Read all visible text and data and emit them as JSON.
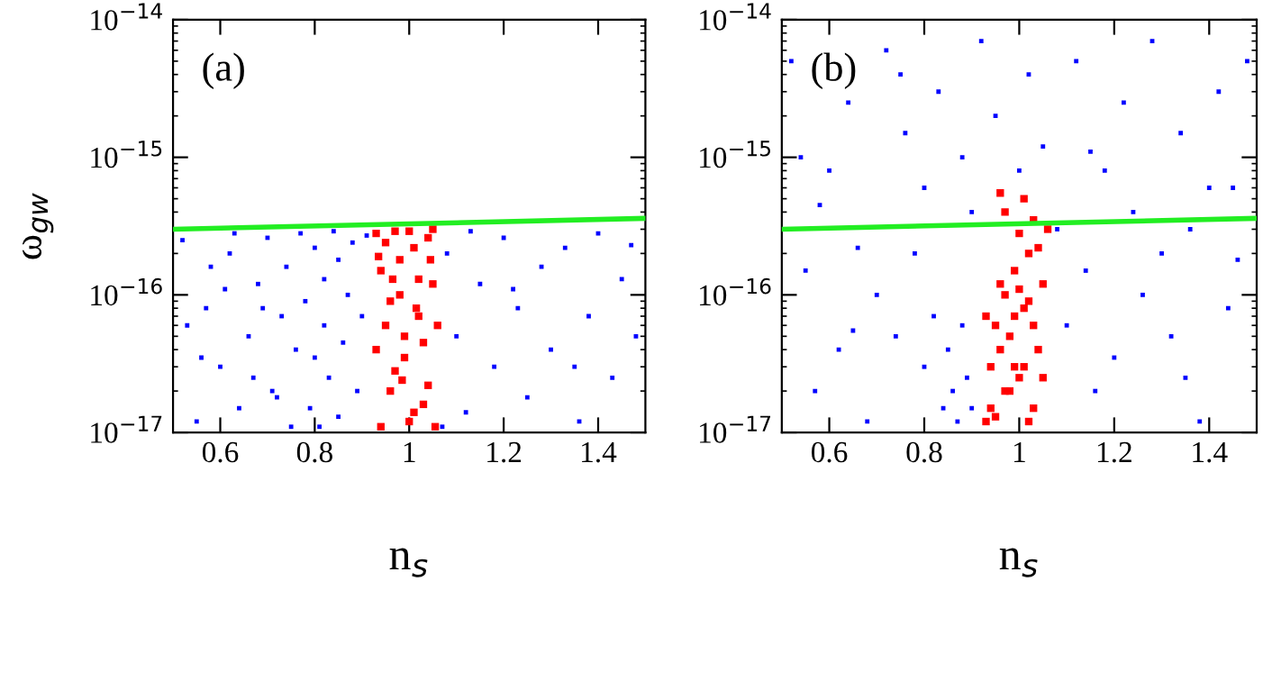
{
  "chart_data": [
    {
      "type": "scatter",
      "xlabel": "n$_{s}$",
      "ylabel": "ω$_{gw}$",
      "annotations": [
        "(a)"
      ],
      "log": "y",
      "marker": "square",
      "legend": false,
      "grid": false,
      "xlim": [
        0.5,
        1.5
      ],
      "xticks": [
        0.6,
        0.8,
        1,
        1.2,
        1.4
      ],
      "ylim": [
        1e-17,
        1e-14
      ],
      "yticks": [
        {
          "value": 1e-17,
          "label": "10$^{−17}$"
        },
        {
          "value": 1e-16,
          "label": "10$^{−16}$"
        },
        {
          "value": 1e-15,
          "label": "10$^{−15}$"
        },
        {
          "value": 1e-14,
          "label": "10$^{−14}$"
        }
      ],
      "series": [
        {
          "color": "#0000ff",
          "x": [
            0.52,
            0.55,
            0.57,
            0.6,
            0.62,
            0.64,
            0.66,
            0.68,
            0.7,
            0.71,
            0.73,
            0.74,
            0.75,
            0.76,
            0.77,
            0.78,
            0.79,
            0.8,
            0.8,
            0.81,
            0.82,
            0.82,
            0.83,
            0.84,
            0.85,
            0.85,
            0.86,
            0.87,
            0.88,
            0.89,
            0.9,
            0.91,
            0.53,
            0.58,
            0.63,
            0.67,
            0.72,
            0.69,
            0.61,
            0.56,
            1.08,
            1.1,
            1.12,
            1.15,
            1.18,
            1.2,
            1.23,
            1.25,
            1.28,
            1.3,
            1.33,
            1.36,
            1.38,
            1.4,
            1.43,
            1.45,
            1.48,
            1.07,
            1.13,
            1.22,
            1.35,
            1.47
          ],
          "values": [
            2.5e-16,
            1.2e-17,
            8e-17,
            3e-17,
            2e-16,
            1.5e-17,
            5e-17,
            1.2e-16,
            2.6e-16,
            2e-17,
            7e-17,
            1.6e-16,
            1.1e-17,
            4e-17,
            2.8e-16,
            9e-17,
            1.5e-17,
            2.2e-16,
            3.5e-17,
            1.1e-17,
            6e-17,
            1.3e-16,
            2.5e-17,
            2.9e-16,
            1.8e-16,
            1.3e-17,
            4.5e-17,
            1e-16,
            2.4e-16,
            2e-17,
            7e-17,
            2.7e-16,
            6e-17,
            1.6e-16,
            2.8e-16,
            2.5e-17,
            1.8e-17,
            8e-17,
            1.1e-16,
            3.5e-17,
            2e-16,
            5e-17,
            1.4e-17,
            1.2e-16,
            3e-17,
            2.6e-16,
            8e-17,
            1.8e-17,
            1.6e-16,
            4e-17,
            2.2e-16,
            1.2e-17,
            7e-17,
            2.8e-16,
            2.5e-17,
            1.3e-16,
            5e-17,
            1.1e-17,
            2.9e-16,
            1.1e-16,
            3e-17,
            2.3e-16
          ]
        },
        {
          "color": "#ff0000",
          "x": [
            0.93,
            0.94,
            0.95,
            0.96,
            0.97,
            0.98,
            0.99,
            1.0,
            1.01,
            1.02,
            1.03,
            1.04,
            1.05,
            0.93,
            0.94,
            0.95,
            0.96,
            0.97,
            0.98,
            0.99,
            1.0,
            1.01,
            1.02,
            1.03,
            1.04,
            1.05,
            1.06,
            0.935,
            0.965,
            0.985,
            1.015,
            1.045,
            1.055
          ],
          "values": [
            2.8e-16,
            1.5e-16,
            6e-17,
            2e-17,
            2.9e-16,
            1e-16,
            3.5e-17,
            1.2e-17,
            2.2e-16,
            7e-17,
            1.6e-17,
            2.6e-16,
            1.2e-16,
            4e-17,
            1.1e-17,
            2.4e-16,
            9e-17,
            2.8e-17,
            1.8e-16,
            5e-17,
            2.9e-16,
            1.4e-17,
            1.3e-16,
            4.5e-17,
            2.2e-17,
            3e-16,
            6e-17,
            1.9e-16,
            1.3e-16,
            2.4e-17,
            8e-17,
            1.8e-16,
            1.1e-17
          ]
        },
        {
          "type": "line",
          "marker": "none",
          "color": "#22ee22",
          "x": [
            0.5,
            1.5
          ],
          "values": [
            3e-16,
            3.6e-16
          ]
        }
      ]
    },
    {
      "type": "scatter",
      "xlabel": "n$_{s}$",
      "annotations": [
        "(b)"
      ],
      "log": "y",
      "marker": "square",
      "legend": false,
      "grid": false,
      "xlim": [
        0.5,
        1.5
      ],
      "xticks": [
        0.6,
        0.8,
        1,
        1.2,
        1.4
      ],
      "ylim": [
        1e-17,
        1e-14
      ],
      "yticks": [
        {
          "value": 1e-17,
          "label": "10$^{−17}$"
        },
        {
          "value": 1e-16,
          "label": "10$^{−16}$"
        },
        {
          "value": 1e-15,
          "label": "10$^{−15}$"
        },
        {
          "value": 1e-14,
          "label": "10$^{−14}$"
        }
      ],
      "series": [
        {
          "color": "#0000ff",
          "x": [
            0.52,
            0.55,
            0.57,
            0.6,
            0.62,
            0.64,
            0.66,
            0.68,
            0.7,
            0.72,
            0.74,
            0.76,
            0.78,
            0.8,
            0.82,
            0.84,
            0.85,
            0.86,
            0.87,
            0.88,
            0.89,
            0.9,
            0.9,
            0.83,
            0.88,
            0.92,
            0.95,
            1.0,
            1.02,
            1.05,
            1.08,
            1.1,
            1.12,
            1.14,
            1.16,
            1.18,
            1.2,
            1.22,
            1.24,
            1.26,
            1.28,
            1.3,
            1.32,
            1.34,
            1.36,
            1.38,
            1.4,
            1.42,
            1.44,
            1.46,
            1.48,
            0.54,
            0.58,
            0.65,
            0.75,
            0.8,
            1.15,
            1.35,
            1.45
          ],
          "values": [
            5e-15,
            1.5e-16,
            2e-17,
            8e-16,
            4e-17,
            2.5e-15,
            2.2e-16,
            1.2e-17,
            1e-16,
            6e-15,
            5e-17,
            1.5e-15,
            2e-16,
            3e-17,
            7e-17,
            1.5e-17,
            4e-17,
            2e-17,
            1.2e-17,
            6e-17,
            2.5e-17,
            1.5e-17,
            4e-16,
            3e-15,
            1e-15,
            7e-15,
            2e-15,
            8e-16,
            4e-15,
            1.2e-15,
            3e-16,
            6e-17,
            5e-15,
            1.5e-16,
            2e-17,
            8e-16,
            3.5e-17,
            2.5e-15,
            4e-16,
            1e-16,
            7e-15,
            2e-16,
            5e-17,
            1.5e-15,
            3e-16,
            1.2e-17,
            6e-16,
            3e-15,
            8e-17,
            1.8e-16,
            5e-15,
            1e-15,
            4.5e-16,
            5.5e-17,
            4e-15,
            6e-16,
            1.1e-15,
            2.5e-17,
            6e-16
          ]
        },
        {
          "color": "#ff0000",
          "x": [
            0.93,
            0.94,
            0.95,
            0.96,
            0.97,
            0.98,
            0.99,
            1.0,
            1.01,
            1.02,
            1.03,
            1.04,
            1.05,
            1.06,
            0.93,
            0.94,
            0.95,
            0.96,
            0.97,
            0.98,
            0.99,
            1.0,
            1.01,
            1.02,
            1.03,
            1.04,
            1.05,
            0.96,
            0.97,
            1.01,
            1.03,
            1.0,
            0.99,
            1.02
          ],
          "values": [
            1.2e-17,
            3e-17,
            6e-17,
            1.2e-16,
            2e-17,
            5e-17,
            1.5e-16,
            2.5e-17,
            8e-17,
            2e-16,
            1.5e-17,
            4e-17,
            1.2e-16,
            3e-16,
            7e-17,
            1.5e-17,
            1.3e-17,
            4e-17,
            1e-16,
            2e-17,
            7e-17,
            1.1e-16,
            3e-17,
            1.2e-17,
            6e-17,
            2.2e-16,
            2.5e-17,
            5.5e-16,
            4e-16,
            5e-16,
            3.5e-16,
            2.8e-16,
            3e-17,
            9e-17
          ]
        },
        {
          "type": "line",
          "marker": "none",
          "color": "#22ee22",
          "x": [
            0.5,
            1.5
          ],
          "values": [
            3e-16,
            3.6e-16
          ]
        }
      ]
    }
  ]
}
